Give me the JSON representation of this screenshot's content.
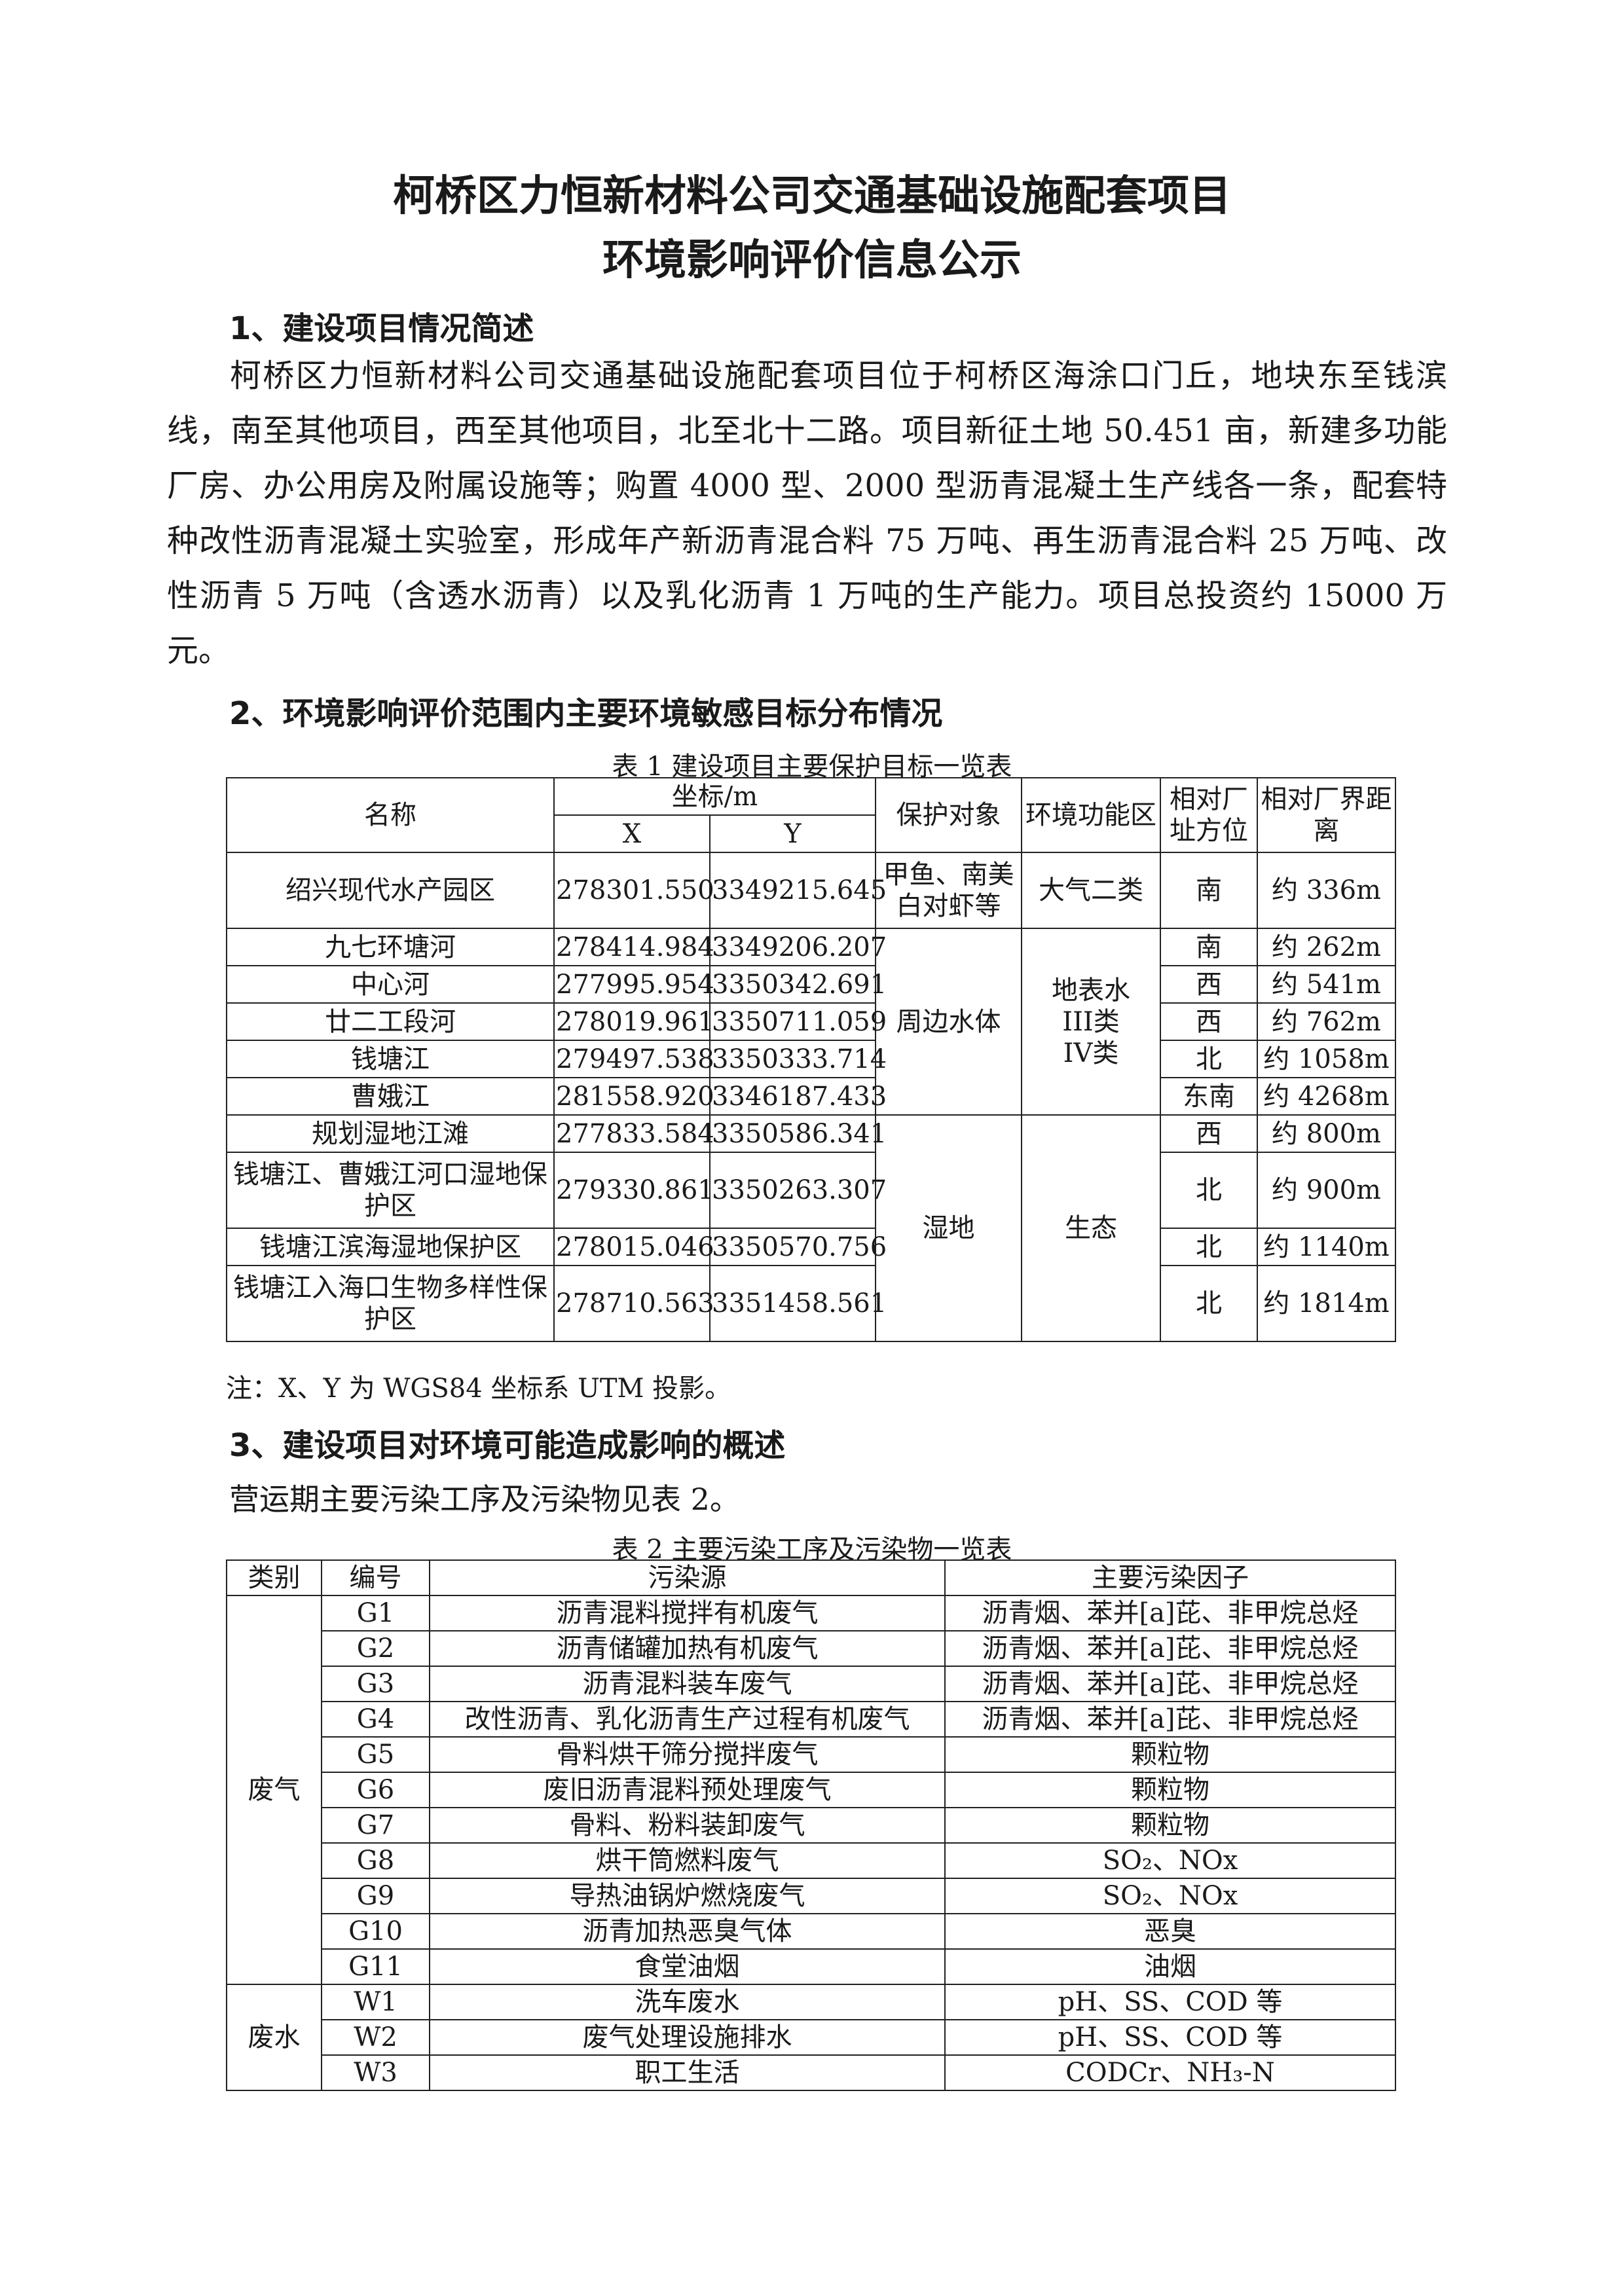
{
  "title_line1": "柯桥区力恒新材料公司交通基础设施配套项目",
  "title_line2": "环境影响评价信息公示",
  "section1": {
    "heading": "1、建设项目情况简述",
    "paragraph": "柯桥区力恒新材料公司交通基础设施配套项目位于柯桥区海涂口门丘，地块东至钱滨线，南至其他项目，西至其他项目，北至北十二路。项目新征土地 50.451 亩，新建多功能厂房、办公用房及附属设施等；购置 4000 型、2000 型沥青混凝土生产线各一条，配套特种改性沥青混凝土实验室，形成年产新沥青混合料 75 万吨、再生沥青混合料 25 万吨、改性沥青 5 万吨（含透水沥青）以及乳化沥青 1 万吨的生产能力。项目总投资约 15000 万元。"
  },
  "section2": {
    "heading": "2、环境影响评价范围内主要环境敏感目标分布情况",
    "table1": {
      "caption": "表 1  建设项目主要保护目标一览表",
      "headers": {
        "name": "名称",
        "coord": "坐标/m",
        "x": "X",
        "y": "Y",
        "target": "保护对象",
        "zone": "环境功能区",
        "direction": "相对厂址方位",
        "distance": "相对厂界距离"
      },
      "rows": [
        {
          "name": "绍兴现代水产园区",
          "x": "278301.550",
          "y": "3349215.645",
          "direction": "南",
          "distance": "约 336m"
        },
        {
          "name": "九七环塘河",
          "x": "278414.984",
          "y": "3349206.207",
          "direction": "南",
          "distance": "约 262m"
        },
        {
          "name": "中心河",
          "x": "277995.954",
          "y": "3350342.691",
          "direction": "西",
          "distance": "约 541m"
        },
        {
          "name": "廿二工段河",
          "x": "278019.961",
          "y": "3350711.059",
          "direction": "西",
          "distance": "约 762m"
        },
        {
          "name": "钱塘江",
          "x": "279497.538",
          "y": "3350333.714",
          "direction": "北",
          "distance": "约 1058m"
        },
        {
          "name": "曹娥江",
          "x": "281558.920",
          "y": "3346187.433",
          "direction": "东南",
          "distance": "约 4268m"
        },
        {
          "name": "规划湿地江滩",
          "x": "277833.584",
          "y": "3350586.341",
          "direction": "西",
          "distance": "约 800m"
        },
        {
          "name": "钱塘江、曹娥江河口湿地保护区",
          "x": "279330.861",
          "y": "3350263.307",
          "direction": "北",
          "distance": "约 900m"
        },
        {
          "name": "钱塘江滨海湿地保护区",
          "x": "278015.046",
          "y": "3350570.756",
          "direction": "北",
          "distance": "约 1140m"
        },
        {
          "name": "钱塘江入海口生物多样性保护区",
          "x": "278710.563",
          "y": "3351458.561",
          "direction": "北",
          "distance": "约 1814m"
        }
      ],
      "groups": {
        "aquaculture_target": "甲鱼、南美白对虾等",
        "aquaculture_zone": "大气二类",
        "water_target": "周边水体",
        "water_zone": "地表水 III类 IV类",
        "wetland_target": "湿地",
        "wetland_zone": "生态"
      },
      "note": "注：X、Y 为 WGS84 坐标系 UTM 投影。"
    }
  },
  "section3": {
    "heading": "3、建设项目对环境可能造成影响的概述",
    "intro": "营运期主要污染工序及污染物见表 2。",
    "table2": {
      "caption": "表 2   主要污染工序及污染物一览表",
      "headers": {
        "category": "类别",
        "code": "编号",
        "source": "污染源",
        "factor": "主要污染因子"
      },
      "category_gas": "废气",
      "category_water": "废水",
      "rows": [
        {
          "code": "G1",
          "source": "沥青混料搅拌有机废气",
          "factor": "沥青烟、苯并[a]芘、非甲烷总烃"
        },
        {
          "code": "G2",
          "source": "沥青储罐加热有机废气",
          "factor": "沥青烟、苯并[a]芘、非甲烷总烃"
        },
        {
          "code": "G3",
          "source": "沥青混料装车废气",
          "factor": "沥青烟、苯并[a]芘、非甲烷总烃"
        },
        {
          "code": "G4",
          "source": "改性沥青、乳化沥青生产过程有机废气",
          "factor": "沥青烟、苯并[a]芘、非甲烷总烃"
        },
        {
          "code": "G5",
          "source": "骨料烘干筛分搅拌废气",
          "factor": "颗粒物"
        },
        {
          "code": "G6",
          "source": "废旧沥青混料预处理废气",
          "factor": "颗粒物"
        },
        {
          "code": "G7",
          "source": "骨料、粉料装卸废气",
          "factor": "颗粒物"
        },
        {
          "code": "G8",
          "source": "烘干筒燃料废气",
          "factor": "SO₂、NOx"
        },
        {
          "code": "G9",
          "source": "导热油锅炉燃烧废气",
          "factor": "SO₂、NOx"
        },
        {
          "code": "G10",
          "source": "沥青加热恶臭气体",
          "factor": "恶臭"
        },
        {
          "code": "G11",
          "source": "食堂油烟",
          "factor": "油烟"
        },
        {
          "code": "W1",
          "source": "洗车废水",
          "factor": "pH、SS、COD 等"
        },
        {
          "code": "W2",
          "source": "废气处理设施排水",
          "factor": "pH、SS、COD 等"
        },
        {
          "code": "W3",
          "source": "职工生活",
          "factor": "CODCr、NH₃-N"
        }
      ]
    }
  }
}
